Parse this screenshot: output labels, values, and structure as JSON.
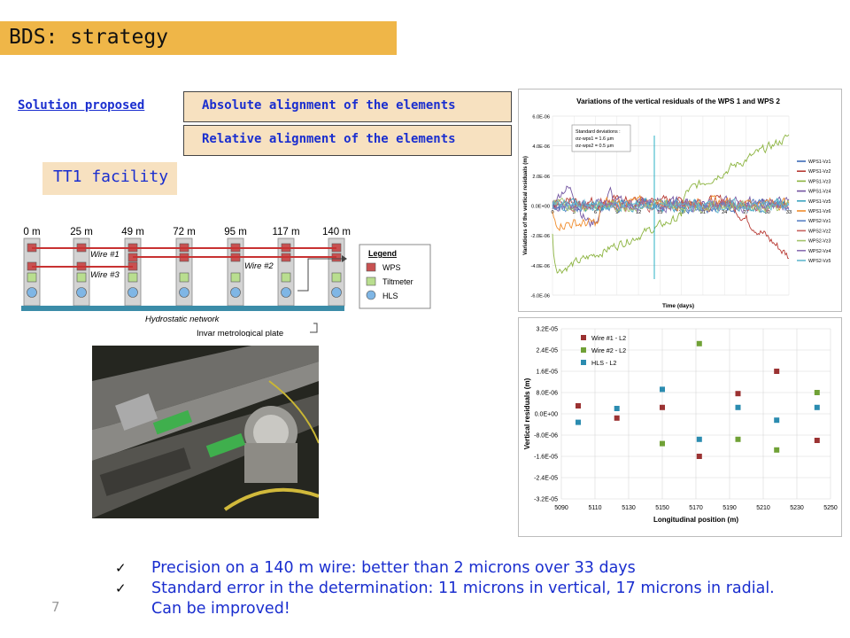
{
  "slide": {
    "title": "BDS: strategy",
    "solution_label": "Solution proposed",
    "option_absolute": "Absolute alignment of the elements",
    "option_relative": "Relative alignment of the elements",
    "facility": "TT1 facility",
    "page_number": "7",
    "bullets": [
      "Precision on a 140 m wire: better than 2 microns over 33 days",
      "Standard error in the determination: 11 microns in vertical, 17 microns in radial. Can be improved!"
    ],
    "colors": {
      "title_bar": "#efb648",
      "box_fill": "#f7e1c0",
      "text_blue": "#1a2ecf"
    }
  },
  "diagram": {
    "positions": [
      "0 m",
      "25 m",
      "49 m",
      "72 m",
      "95 m",
      "117 m",
      "140 m"
    ],
    "wire1": "Wire #1",
    "wire2": "Wire #2",
    "wire3": "Wire #3",
    "network": "Hydrostatic network",
    "plate": "Invar metrological plate",
    "legend": {
      "title": "Legend",
      "items": [
        "WPS",
        "Tiltmeter",
        "HLS"
      ]
    }
  },
  "chart_data": [
    {
      "type": "line",
      "title": "Variations of the vertical residuals of the WPS 1 and WPS 2",
      "xlabel": "Time (days)",
      "ylabel": "Variations of the vertical residuals (m)",
      "ylim": [
        -6e-06,
        6e-06
      ],
      "y_ticks": [
        "6.0E-06",
        "4.0E-06",
        "2.0E-06",
        "0.0E+00",
        "-2.0E-06",
        "-4.0E-06",
        "-6.0E-06"
      ],
      "x_ticks": [
        "0",
        "3",
        "6",
        "9",
        "12",
        "15",
        "18",
        "21",
        "24",
        "27",
        "30",
        "33"
      ],
      "annotation": [
        "Standard deviations :",
        "σz-wps1 = 1.6 µm",
        "σz-wps2 = 0.5 µm"
      ],
      "series": [
        {
          "name": "WPS1-Vz1",
          "color": "#3d6cb8"
        },
        {
          "name": "WPS1-Vz2",
          "color": "#b83b35"
        },
        {
          "name": "WPS1-Vz3",
          "color": "#8cb440"
        },
        {
          "name": "WPS1-Vz4",
          "color": "#7355a1"
        },
        {
          "name": "WPS1-Vz5",
          "color": "#3da5c0"
        },
        {
          "name": "WPS1-Vz6",
          "color": "#f08c2c"
        },
        {
          "name": "WPS2-Vz1",
          "color": "#5a82c6"
        },
        {
          "name": "WPS2-Vz2",
          "color": "#c7625f"
        },
        {
          "name": "WPS2-Vz3",
          "color": "#a4c46c"
        },
        {
          "name": "WPS2-Vz4",
          "color": "#8a70b3"
        },
        {
          "name": "WPS2-Vz5",
          "color": "#63b8cf"
        }
      ],
      "legend_position": "right",
      "grid": true
    },
    {
      "type": "scatter",
      "xlabel": "Longitudinal position (m)",
      "ylabel": "Vertical residuals (m)",
      "x_ticks": [
        "5090",
        "5110",
        "5130",
        "5150",
        "5170",
        "5190",
        "5210",
        "5230",
        "5250"
      ],
      "y_ticks": [
        "3.2E-05",
        "2.4E-05",
        "1.6E-05",
        "8.0E-06",
        "0.0E+00",
        "-8.0E-06",
        "-1.6E-05",
        "-2.4E-05",
        "-3.2E-05"
      ],
      "xlim": [
        5090,
        5250
      ],
      "ylim": [
        -3.2e-05,
        3.2e-05
      ],
      "legend_position": "top-left",
      "grid": true,
      "series": [
        {
          "name": "Wire #1 - L2",
          "color": "#9b3232",
          "points": [
            [
              5100,
              3e-06
            ],
            [
              5123,
              -1.6e-06
            ],
            [
              5150,
              2.4e-06
            ],
            [
              5172,
              -1.6e-05
            ],
            [
              5195,
              7.6e-06
            ],
            [
              5218,
              1.6e-05
            ],
            [
              5242,
              -1e-05
            ]
          ]
        },
        {
          "name": "Wire #2 - L2",
          "color": "#70a136",
          "points": [
            [
              5150,
              -1.12e-05
            ],
            [
              5172,
              2.64e-05
            ],
            [
              5195,
              -9.6e-06
            ],
            [
              5218,
              -1.36e-05
            ],
            [
              5242,
              8e-06
            ]
          ]
        },
        {
          "name": "HLS - L2",
          "color": "#2b8cb0",
          "points": [
            [
              5100,
              -3.2e-06
            ],
            [
              5123,
              2e-06
            ],
            [
              5150,
              9.2e-06
            ],
            [
              5172,
              -9.6e-06
            ],
            [
              5195,
              2.4e-06
            ],
            [
              5218,
              -2.4e-06
            ],
            [
              5242,
              2.4e-06
            ]
          ]
        }
      ]
    }
  ]
}
